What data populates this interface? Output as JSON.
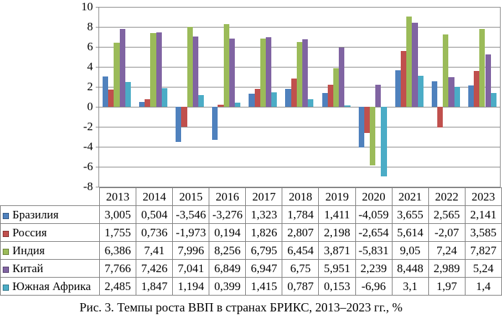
{
  "caption": "Рис. 3. Темпы роста ВВП в странах БРИКС, 2013–2023 гг., %",
  "chart_data": {
    "type": "bar",
    "title": "",
    "xlabel": "",
    "ylabel": "",
    "categories": [
      "2013",
      "2014",
      "2015",
      "2016",
      "2017",
      "2018",
      "2019",
      "2020",
      "2021",
      "2022",
      "2023"
    ],
    "series": [
      {
        "name": "Бразилия",
        "color": "#4f81bd",
        "values": [
          3.005,
          0.504,
          -3.546,
          -3.276,
          1.323,
          1.784,
          1.411,
          -4.059,
          3.655,
          2.565,
          2.141
        ]
      },
      {
        "name": "Россия",
        "color": "#c0504d",
        "values": [
          1.755,
          0.736,
          -1.973,
          0.194,
          1.826,
          2.807,
          2.198,
          -2.654,
          5.614,
          -2.07,
          3.585
        ]
      },
      {
        "name": "Индия",
        "color": "#9bbb59",
        "values": [
          6.386,
          7.41,
          7.996,
          8.256,
          6.795,
          6.454,
          3.871,
          -5.831,
          9.05,
          7.24,
          7.827
        ]
      },
      {
        "name": "Китай",
        "color": "#8064a2",
        "values": [
          7.766,
          7.426,
          7.041,
          6.849,
          6.947,
          6.75,
          5.951,
          2.239,
          8.448,
          2.989,
          5.24
        ]
      },
      {
        "name": "Южная Африка",
        "color": "#4bacc6",
        "values": [
          2.485,
          1.847,
          1.194,
          0.399,
          1.415,
          0.787,
          0.153,
          -6.96,
          3.1,
          1.97,
          1.4
        ]
      }
    ],
    "ylim": [
      -8,
      10
    ],
    "y_ticks": [
      10,
      8,
      6,
      4,
      2,
      0,
      -2,
      -4,
      -6,
      -8
    ],
    "grid": true,
    "gridline_color": "#8c8c8c",
    "legend_position": "data-table-left"
  },
  "table": {
    "year_headers": [
      "2013",
      "2014",
      "2015",
      "2016",
      "2017",
      "2018",
      "2019",
      "2020",
      "2021",
      "2022",
      "2023"
    ],
    "rows": [
      {
        "label": "Бразилия",
        "color": "#4f81bd",
        "cells": [
          "3,005",
          "0,504",
          "-3,546",
          "-3,276",
          "1,323",
          "1,784",
          "1,411",
          "-4,059",
          "3,655",
          "2,565",
          "2,141"
        ]
      },
      {
        "label": "Россия",
        "color": "#c0504d",
        "cells": [
          "1,755",
          "0,736",
          "-1,973",
          "0,194",
          "1,826",
          "2,807",
          "2,198",
          "-2,654",
          "5,614",
          "-2,07",
          "3,585"
        ]
      },
      {
        "label": "Индия",
        "color": "#9bbb59",
        "cells": [
          "6,386",
          "7,41",
          "7,996",
          "8,256",
          "6,795",
          "6,454",
          "3,871",
          "-5,831",
          "9,05",
          "7,24",
          "7,827"
        ]
      },
      {
        "label": "Китай",
        "color": "#8064a2",
        "cells": [
          "7,766",
          "7,426",
          "7,041",
          "6,849",
          "6,947",
          "6,75",
          "5,951",
          "2,239",
          "8,448",
          "2,989",
          "5,24"
        ]
      },
      {
        "label": "Южная Африка",
        "color": "#4bacc6",
        "cells": [
          "2,485",
          "1,847",
          "1,194",
          "0,399",
          "1,415",
          "0,787",
          "0,153",
          "-6,96",
          "3,1",
          "1,97",
          "1,4"
        ]
      }
    ]
  }
}
